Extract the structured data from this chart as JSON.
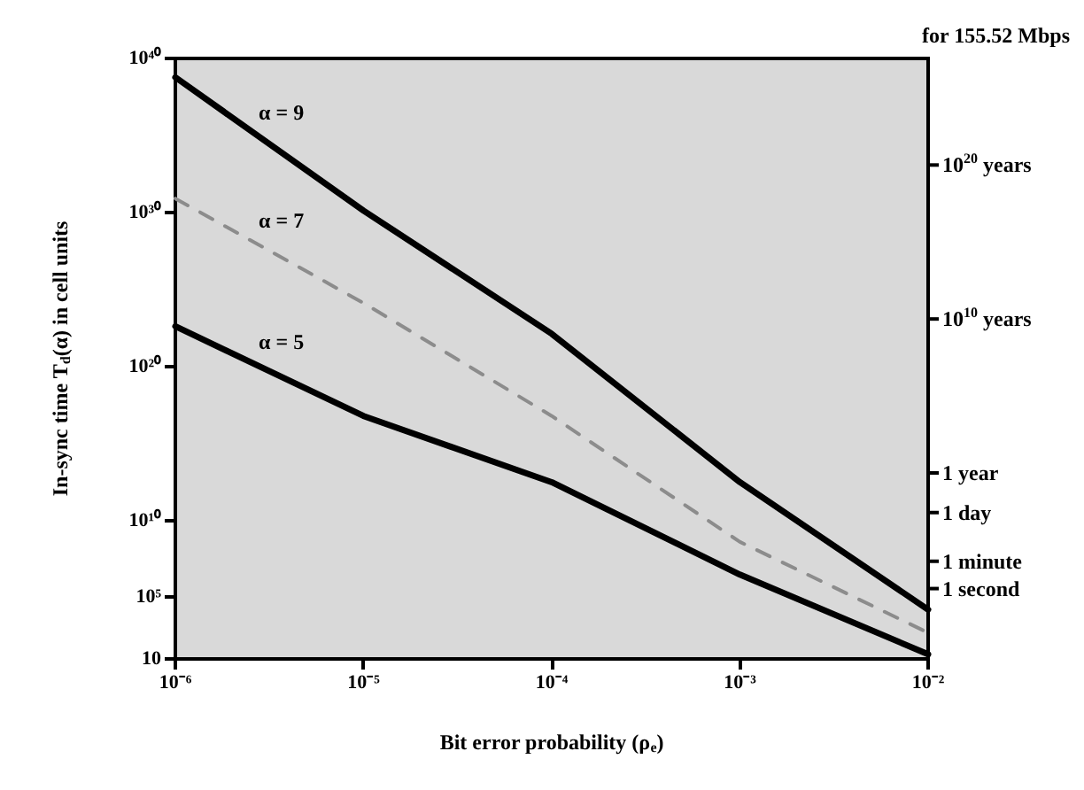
{
  "chart_data": {
    "type": "line",
    "xlabel": "Bit error probability (ρ$_{e}$)",
    "ylabel": "In-sync time T$_{d}$(α) in cell units",
    "log": "xy",
    "x": [
      1e-06,
      1e-05,
      0.0001,
      0.001,
      0.01
    ],
    "series": [
      {
        "name": "α = 9",
        "color": "#000000",
        "values": [
          6e+38,
          1.3e+30,
          1.3e+22,
          3000000000000.0,
          16000.0
        ]
      },
      {
        "name": "α = 7",
        "color": "#8c8c8c",
        "line_style": "dashed",
        "values": [
          8e+30,
          1.3e+24,
          6e+16,
          400000000.0,
          500
        ]
      },
      {
        "name": "α = 5",
        "color": "#000000",
        "values": [
          4e+22,
          6e+16,
          3000000000000.0,
          3000000.0,
          20
        ]
      }
    ],
    "annotations": [
      "for 155.52 Mbps"
    ],
    "ref_lines": [
      {
        "axis": "y",
        "value": 370000.0,
        "label": "1 second"
      },
      {
        "axis": "y",
        "value": 22000000.0,
        "label": "1 minute"
      },
      {
        "axis": "y",
        "value": 32000000000.0,
        "label": "1 day"
      },
      {
        "axis": "y",
        "value": 12000000000000.0,
        "label": "1 year"
      },
      {
        "axis": "y",
        "value": 1.2e+23,
        "label": "10$^{10}$ years"
      },
      {
        "axis": "y",
        "value": 1.2e+33,
        "label": "10$^{20}$ years"
      }
    ],
    "xlim": [
      1e-06,
      0.01
    ],
    "xticks": [
      {
        "value": 1e-06,
        "label": "10⁻⁶"
      },
      {
        "value": 1e-05,
        "label": "10⁻⁵"
      },
      {
        "value": 0.0001,
        "label": "10⁻⁴"
      },
      {
        "value": 0.001,
        "label": "10⁻³"
      },
      {
        "value": 0.01,
        "label": "10⁻²"
      }
    ],
    "ylim": [
      10,
      1e+40
    ],
    "yticks": [
      10,
      {
        "value": 100000.0,
        "label": "10⁵"
      },
      {
        "value": 10000000000.0,
        "label": "10¹⁰"
      },
      {
        "value": 1e+20,
        "label": "10²⁰"
      },
      {
        "value": 1e+30,
        "label": "10³⁰"
      },
      {
        "value": 1e+40,
        "label": "10⁴⁰"
      }
    ],
    "grid": false,
    "marker": "none",
    "line_style": "solid"
  }
}
